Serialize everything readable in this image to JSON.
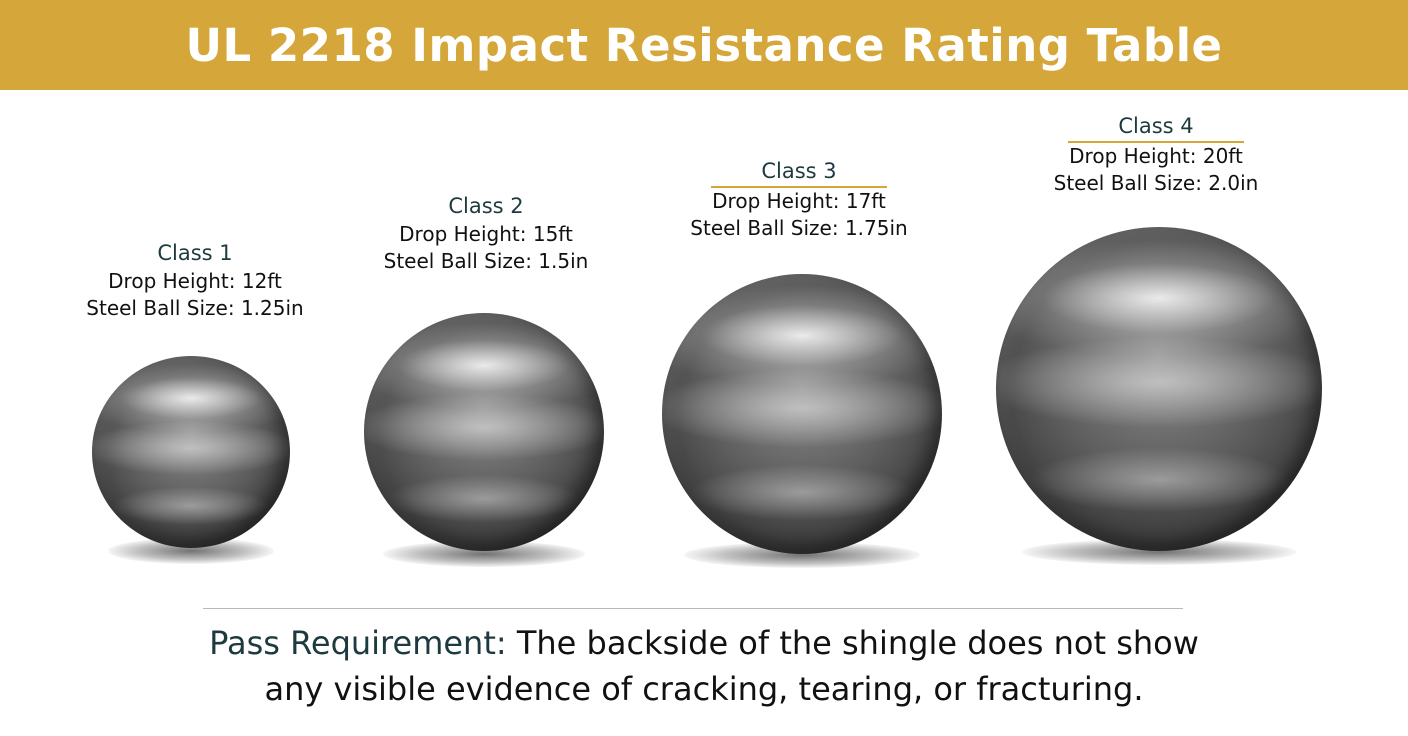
{
  "title": "UL 2218 Impact Resistance Rating Table",
  "classes": [
    {
      "name": "Class 1",
      "drop_height": "Drop Height: 12ft",
      "ball_size": "Steel Ball Size: 1.25in"
    },
    {
      "name": "Class 2",
      "drop_height": "Drop Height: 15ft",
      "ball_size": "Steel Ball Size: 1.5in"
    },
    {
      "name": "Class 3",
      "drop_height": "Drop Height: 17ft",
      "ball_size": "Steel Ball Size: 1.75in"
    },
    {
      "name": "Class 4",
      "drop_height": "Drop Height: 20ft",
      "ball_size": "Steel Ball Size: 2.0in"
    }
  ],
  "pass_requirement": {
    "label": "Pass Requirement:",
    "line1": " The backside of the shingle does not show",
    "line2": "any visible evidence of cracking, tearing, or fracturing."
  },
  "colors": {
    "title_bar": "#d5a73a",
    "title_text": "#ffffff",
    "class_name": "#1d3a3e",
    "underline": "#d5a73a"
  }
}
